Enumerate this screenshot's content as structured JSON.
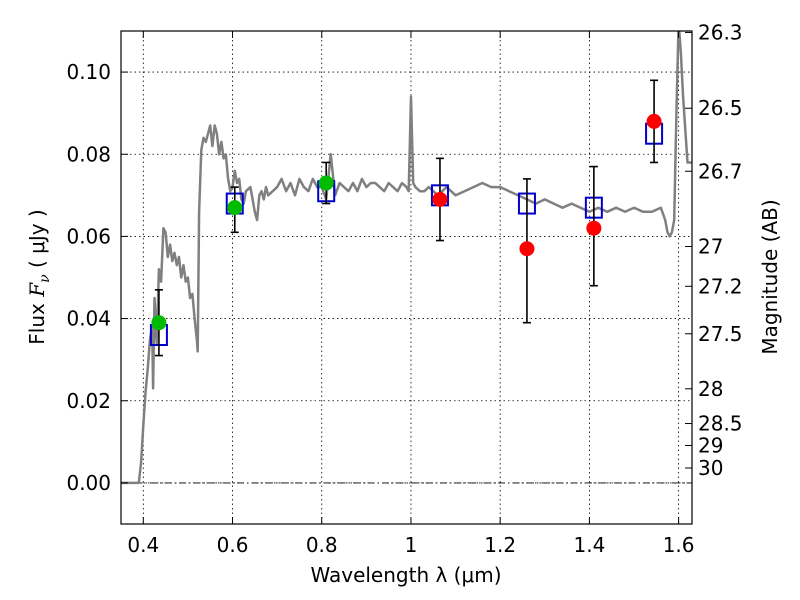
{
  "chart_data": {
    "type": "scatter",
    "title": "",
    "xlabel": "Wavelength  λ (μm)",
    "ylabel": "Flux  F_ν  ( μJy )",
    "ylabel_parts": {
      "pre": "Flux  ",
      "sym": "F",
      "sub": "ν",
      "post": "  ( μJy )"
    },
    "y2label": "Magnitude (AB)",
    "xlim": [
      0.35,
      1.63
    ],
    "ylim": [
      -0.01,
      0.11
    ],
    "grid": true,
    "x_ticks": [
      {
        "v": 0.4,
        "label": "0.4"
      },
      {
        "v": 0.6,
        "label": "0.6"
      },
      {
        "v": 0.8,
        "label": "0.8"
      },
      {
        "v": 1.0,
        "label": "1"
      },
      {
        "v": 1.2,
        "label": "1.2"
      },
      {
        "v": 1.4,
        "label": "1.4"
      },
      {
        "v": 1.6,
        "label": "1.6"
      }
    ],
    "y_ticks": [
      {
        "v": 0.0,
        "label": "0.00"
      },
      {
        "v": 0.02,
        "label": "0.02"
      },
      {
        "v": 0.04,
        "label": "0.04"
      },
      {
        "v": 0.06,
        "label": "0.06"
      },
      {
        "v": 0.08,
        "label": "0.08"
      },
      {
        "v": 0.1,
        "label": "0.10"
      }
    ],
    "y2_ticks": [
      {
        "mag": 26.3,
        "label": "26.3"
      },
      {
        "mag": 26.5,
        "label": "26.5"
      },
      {
        "mag": 26.7,
        "label": "26.7"
      },
      {
        "mag": 27.0,
        "label": "27"
      },
      {
        "mag": 27.2,
        "label": "27.2"
      },
      {
        "mag": 27.5,
        "label": "27.5"
      },
      {
        "mag": 28.0,
        "label": "28"
      },
      {
        "mag": 28.5,
        "label": "28.5"
      },
      {
        "mag": 29.0,
        "label": "29"
      },
      {
        "mag": 30.0,
        "label": "30"
      }
    ],
    "series": [
      {
        "kind": "line",
        "color": "#808080",
        "x": [
          0.35,
          0.38,
          0.39,
          0.395,
          0.4,
          0.405,
          0.41,
          0.415,
          0.42,
          0.422,
          0.425,
          0.43,
          0.435,
          0.44,
          0.445,
          0.45,
          0.455,
          0.46,
          0.465,
          0.47,
          0.475,
          0.48,
          0.485,
          0.49,
          0.495,
          0.5,
          0.505,
          0.51,
          0.515,
          0.52,
          0.522,
          0.525,
          0.53,
          0.535,
          0.54,
          0.545,
          0.55,
          0.555,
          0.56,
          0.565,
          0.57,
          0.575,
          0.58,
          0.585,
          0.59,
          0.595,
          0.6,
          0.605,
          0.61,
          0.615,
          0.62,
          0.625,
          0.63,
          0.64,
          0.65,
          0.655,
          0.66,
          0.665,
          0.67,
          0.675,
          0.68,
          0.69,
          0.7,
          0.71,
          0.72,
          0.73,
          0.74,
          0.75,
          0.76,
          0.77,
          0.78,
          0.79,
          0.8,
          0.81,
          0.82,
          0.83,
          0.84,
          0.85,
          0.86,
          0.87,
          0.88,
          0.89,
          0.9,
          0.91,
          0.92,
          0.93,
          0.94,
          0.95,
          0.96,
          0.97,
          0.98,
          0.99,
          0.995,
          1.0,
          1.005,
          1.01,
          1.02,
          1.03,
          1.04,
          1.05,
          1.06,
          1.07,
          1.08,
          1.09,
          1.1,
          1.12,
          1.14,
          1.16,
          1.18,
          1.2,
          1.22,
          1.24,
          1.26,
          1.28,
          1.3,
          1.32,
          1.34,
          1.36,
          1.38,
          1.4,
          1.42,
          1.44,
          1.46,
          1.48,
          1.5,
          1.52,
          1.54,
          1.56,
          1.57,
          1.575,
          1.58,
          1.585,
          1.59,
          1.595,
          1.6,
          1.605,
          1.61,
          1.62,
          1.63
        ],
        "y": [
          0.0,
          0.0,
          0.0,
          0.005,
          0.014,
          0.022,
          0.028,
          0.035,
          0.038,
          0.023,
          0.045,
          0.034,
          0.052,
          0.049,
          0.062,
          0.061,
          0.055,
          0.058,
          0.054,
          0.056,
          0.053,
          0.055,
          0.05,
          0.053,
          0.049,
          0.05,
          0.045,
          0.046,
          0.04,
          0.035,
          0.032,
          0.066,
          0.081,
          0.084,
          0.083,
          0.085,
          0.087,
          0.082,
          0.087,
          0.085,
          0.08,
          0.083,
          0.079,
          0.08,
          0.074,
          0.071,
          0.072,
          0.076,
          0.073,
          0.074,
          0.069,
          0.068,
          0.071,
          0.072,
          0.066,
          0.064,
          0.07,
          0.071,
          0.069,
          0.072,
          0.07,
          0.071,
          0.072,
          0.074,
          0.071,
          0.073,
          0.07,
          0.074,
          0.072,
          0.071,
          0.074,
          0.072,
          0.072,
          0.069,
          0.08,
          0.07,
          0.073,
          0.072,
          0.071,
          0.073,
          0.071,
          0.074,
          0.072,
          0.073,
          0.073,
          0.072,
          0.071,
          0.073,
          0.072,
          0.071,
          0.073,
          0.072,
          0.071,
          0.094,
          0.073,
          0.072,
          0.071,
          0.071,
          0.072,
          0.071,
          0.07,
          0.071,
          0.072,
          0.071,
          0.07,
          0.071,
          0.072,
          0.073,
          0.072,
          0.072,
          0.071,
          0.07,
          0.069,
          0.068,
          0.069,
          0.068,
          0.067,
          0.068,
          0.067,
          0.066,
          0.067,
          0.066,
          0.067,
          0.066,
          0.067,
          0.066,
          0.066,
          0.067,
          0.064,
          0.061,
          0.06,
          0.061,
          0.064,
          0.09,
          0.112,
          0.105,
          0.094,
          0.078,
          0.078
        ]
      },
      {
        "kind": "open-square",
        "color": "#0000cc",
        "x": [
          0.435,
          0.605,
          0.81,
          1.065,
          1.26,
          1.41,
          1.545
        ],
        "y": [
          0.036,
          0.068,
          0.071,
          0.07,
          0.068,
          0.067,
          0.085
        ]
      },
      {
        "kind": "circle",
        "color": "#00bb00",
        "x": [
          0.435,
          0.605,
          0.81
        ],
        "y": [
          0.039,
          0.067,
          0.073
        ],
        "err_low": [
          0.031,
          0.061,
          0.068
        ],
        "err_high": [
          0.047,
          0.072,
          0.078
        ]
      },
      {
        "kind": "circle",
        "color": "#ff0000",
        "x": [
          1.065,
          1.26,
          1.41,
          1.545
        ],
        "y": [
          0.069,
          0.057,
          0.062,
          0.088
        ],
        "err_low": [
          0.059,
          0.039,
          0.048,
          0.078
        ],
        "err_high": [
          0.079,
          0.074,
          0.077,
          0.098
        ]
      }
    ]
  }
}
